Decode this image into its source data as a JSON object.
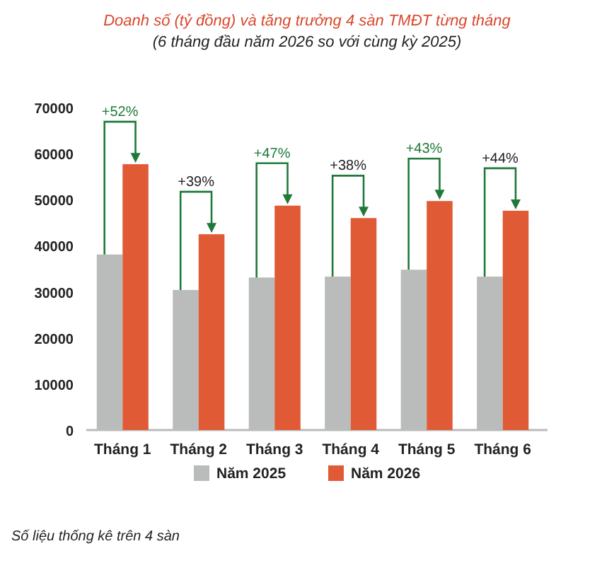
{
  "chart_data": {
    "type": "bar",
    "title": "Doanh số (tỷ đồng) và tăng trưởng 4 sàn TMĐT từng tháng",
    "subtitle": "(6 tháng đầu năm 2026 so với cùng kỳ 2025)",
    "categories": [
      "Tháng 1",
      "Tháng 2",
      "Tháng 3",
      "Tháng 4",
      "Tháng 5",
      "Tháng 6"
    ],
    "series": [
      {
        "name": "Năm 2025",
        "color": "#b9bcbb",
        "values": [
          38100,
          30400,
          33100,
          33300,
          34800,
          33300
        ]
      },
      {
        "name": "Năm 2026",
        "color": "#e05a35",
        "values": [
          57700,
          42500,
          48700,
          46000,
          49700,
          47600
        ]
      }
    ],
    "ylim": [
      0,
      70000
    ],
    "yticks": [
      0,
      10000,
      20000,
      30000,
      40000,
      50000,
      60000,
      70000
    ],
    "legend": "bottom",
    "annotations": [
      "+52%",
      "+39%",
      "+47%",
      "+38%",
      "+43%",
      "+44%",
      "Số liệu thống kê trên 4 sàn"
    ]
  }
}
